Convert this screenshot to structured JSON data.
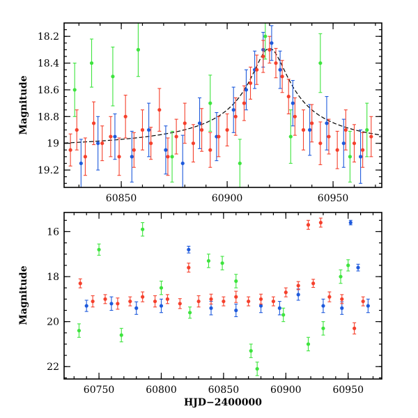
{
  "chart_data": [
    {
      "type": "scatter",
      "panel": "top",
      "title": "",
      "xlabel": "",
      "ylabel": "Magnitude",
      "xlim": [
        60823,
        60973
      ],
      "ylim": [
        19.33,
        18.1
      ],
      "y_inverted": true,
      "x_ticks": [
        60850,
        60900,
        60950
      ],
      "x_tick_labels": [
        "60850",
        "60900",
        "60950"
      ],
      "y_ticks": [
        18.2,
        18.4,
        18.6,
        18.8,
        19.0,
        19.2
      ],
      "y_tick_labels": [
        "18.2",
        "18.4",
        "18.6",
        "18.8",
        "19",
        "19.2"
      ],
      "model_curve": {
        "name": "microlensing model",
        "style": "dashed",
        "color": "#000000",
        "t0": 60920,
        "baseline": 19.07,
        "amplitude": 0.78,
        "tE": 18,
        "x": [
          60823,
          60840,
          60860,
          60880,
          60895,
          60905,
          60912,
          60916,
          60920,
          60924,
          60928,
          60935,
          60945,
          60960,
          60973
        ],
        "y": [
          19.05,
          19.04,
          19.01,
          18.96,
          18.86,
          18.72,
          18.55,
          18.42,
          18.3,
          18.42,
          18.55,
          18.72,
          18.86,
          18.98,
          19.03
        ]
      },
      "series": [
        {
          "name": "red band",
          "color": "#f5402c",
          "x": [
            60826,
            60829,
            60833,
            60837,
            60841,
            60845,
            60849,
            60852,
            60856,
            60860,
            60864,
            60868,
            60872,
            60876,
            60880,
            60884,
            60888,
            60892,
            60896,
            60900,
            60904,
            60908,
            60911,
            60914,
            60917,
            60920,
            60923,
            60926,
            60929,
            60932,
            60936,
            60940,
            60944,
            60948,
            60952,
            60956,
            60960,
            60964,
            60968
          ],
          "y": [
            19.05,
            18.9,
            19.1,
            18.85,
            19.0,
            18.95,
            19.1,
            18.8,
            19.05,
            18.9,
            19.0,
            18.75,
            19.1,
            18.95,
            18.85,
            19.0,
            18.9,
            19.05,
            18.95,
            18.9,
            18.8,
            18.7,
            18.55,
            18.45,
            18.35,
            18.3,
            18.4,
            18.5,
            18.65,
            18.8,
            18.9,
            18.85,
            19.0,
            18.95,
            19.05,
            18.9,
            19.0,
            19.05,
            18.95
          ],
          "yerr": [
            0.12,
            0.15,
            0.14,
            0.16,
            0.13,
            0.15,
            0.14,
            0.16,
            0.13,
            0.15,
            0.12,
            0.16,
            0.14,
            0.13,
            0.15,
            0.14,
            0.16,
            0.13,
            0.15,
            0.12,
            0.14,
            0.13,
            0.12,
            0.11,
            0.12,
            0.1,
            0.11,
            0.12,
            0.13,
            0.14,
            0.15,
            0.14,
            0.16,
            0.13,
            0.14,
            0.15,
            0.14,
            0.13,
            0.15
          ]
        },
        {
          "name": "blue band",
          "color": "#1e5adc",
          "x": [
            60831,
            60839,
            60847,
            60855,
            60863,
            60871,
            60879,
            60887,
            60895,
            60903,
            60909,
            60913,
            60917,
            60921,
            60925,
            60931,
            60939,
            60947,
            60955,
            60963
          ],
          "y": [
            19.15,
            19.0,
            18.95,
            19.1,
            18.9,
            19.05,
            19.15,
            18.85,
            18.95,
            18.75,
            18.6,
            18.45,
            18.3,
            18.25,
            18.45,
            18.7,
            18.9,
            18.85,
            19.0,
            19.1
          ],
          "yerr": [
            0.18,
            0.2,
            0.17,
            0.19,
            0.2,
            0.18,
            0.21,
            0.19,
            0.18,
            0.17,
            0.15,
            0.14,
            0.13,
            0.13,
            0.14,
            0.17,
            0.19,
            0.2,
            0.18,
            0.2
          ]
        },
        {
          "name": "green band",
          "color": "#3ee43e",
          "x": [
            60828,
            60836,
            60846,
            60858,
            60874,
            60892,
            60906,
            60918,
            60930,
            60944,
            60958,
            60966
          ],
          "y": [
            18.6,
            18.4,
            18.5,
            18.3,
            19.1,
            18.7,
            19.15,
            18.2,
            18.95,
            18.4,
            19.1,
            18.9
          ],
          "yerr": [
            0.2,
            0.18,
            0.22,
            0.2,
            0.19,
            0.21,
            0.18,
            0.17,
            0.2,
            0.22,
            0.19,
            0.2
          ]
        }
      ]
    },
    {
      "type": "scatter",
      "panel": "bottom",
      "title": "",
      "xlabel": "HJD−2400000",
      "ylabel": "Magnitude",
      "xlim": [
        60722,
        60977
      ],
      "ylim": [
        22.55,
        15.15
      ],
      "y_inverted": true,
      "x_ticks": [
        60750,
        60800,
        60850,
        60900,
        60950
      ],
      "x_tick_labels": [
        "60750",
        "60800",
        "60850",
        "60900",
        "60950"
      ],
      "y_ticks": [
        16,
        18,
        20,
        22
      ],
      "y_tick_labels": [
        "16",
        "18",
        "20",
        "22"
      ],
      "series": [
        {
          "name": "red band",
          "color": "#f5402c",
          "x": [
            60735,
            60745,
            60755,
            60765,
            60775,
            60785,
            60795,
            60805,
            60815,
            60822,
            60830,
            60840,
            60850,
            60860,
            60870,
            60880,
            60890,
            60900,
            60910,
            60918,
            60922,
            60928,
            60935,
            60945,
            60955,
            60962
          ],
          "y": [
            18.3,
            19.1,
            19.0,
            19.2,
            19.1,
            18.9,
            19.1,
            19.0,
            19.2,
            17.6,
            19.1,
            19.0,
            19.1,
            18.9,
            19.1,
            19.0,
            19.1,
            18.7,
            18.4,
            15.7,
            18.3,
            15.6,
            18.9,
            19.0,
            20.3,
            19.1
          ],
          "yerr": [
            0.2,
            0.25,
            0.2,
            0.25,
            0.2,
            0.22,
            0.25,
            0.2,
            0.22,
            0.2,
            0.25,
            0.22,
            0.2,
            0.25,
            0.2,
            0.22,
            0.2,
            0.2,
            0.18,
            0.2,
            0.18,
            0.2,
            0.22,
            0.2,
            0.25,
            0.2
          ]
        },
        {
          "name": "blue band",
          "color": "#1e5adc",
          "x": [
            60740,
            60760,
            60780,
            60800,
            60822,
            60840,
            60860,
            60880,
            60895,
            60910,
            60930,
            60945,
            60952,
            60958,
            60966
          ],
          "y": [
            19.3,
            19.2,
            19.4,
            19.3,
            16.8,
            19.4,
            19.5,
            19.3,
            19.4,
            18.8,
            19.3,
            19.4,
            15.6,
            17.6,
            19.3
          ],
          "yerr": [
            0.25,
            0.3,
            0.28,
            0.3,
            0.15,
            0.3,
            0.28,
            0.3,
            0.3,
            0.25,
            0.3,
            0.28,
            0.1,
            0.15,
            0.3
          ]
        },
        {
          "name": "green band",
          "color": "#3ee43e",
          "x": [
            60734,
            60750,
            60768,
            60785,
            60800,
            60823,
            60838,
            60849,
            60860,
            60872,
            60877,
            60898,
            60918,
            60930,
            60944,
            60950
          ],
          "y": [
            20.4,
            16.8,
            20.6,
            15.9,
            18.5,
            19.6,
            17.3,
            17.4,
            18.2,
            21.3,
            22.1,
            19.7,
            21.0,
            20.3,
            18.0,
            17.5
          ],
          "yerr": [
            0.3,
            0.25,
            0.3,
            0.3,
            0.3,
            0.25,
            0.3,
            0.3,
            0.3,
            0.3,
            0.3,
            0.3,
            0.3,
            0.3,
            0.3,
            0.25
          ]
        }
      ]
    }
  ]
}
